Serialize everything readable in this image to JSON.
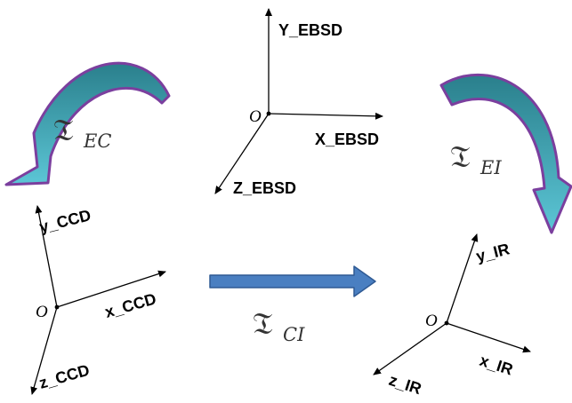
{
  "frames": {
    "ebsd": {
      "origin_label": "O",
      "x_label": "X_EBSD",
      "y_label": "Y_EBSD",
      "z_label": "Z_EBSD"
    },
    "ccd": {
      "origin_label": "O",
      "x_label": "x_CCD",
      "y_label": "y_CCD",
      "z_label": "z_CCD"
    },
    "ir": {
      "origin_label": "O",
      "x_label": "x_IR",
      "y_label": "y_IR",
      "z_label": "z_IR"
    }
  },
  "transforms": {
    "ec": {
      "symbol": "𝔗",
      "subscript": "EC"
    },
    "ei": {
      "symbol": "𝔗",
      "subscript": "EI"
    },
    "ci": {
      "symbol": "𝔗",
      "subscript": "CI"
    }
  },
  "colors": {
    "curved_arrow_fill": "#3a98a8",
    "curved_arrow_gradient_top": "#2a7f8c",
    "curved_arrow_gradient_bottom": "#5cc6d6",
    "curved_arrow_outline": "#7b3f9e",
    "block_arrow_fill": "#4a7fc1",
    "block_arrow_outline": "#2f5a94",
    "axis": "#000000"
  }
}
